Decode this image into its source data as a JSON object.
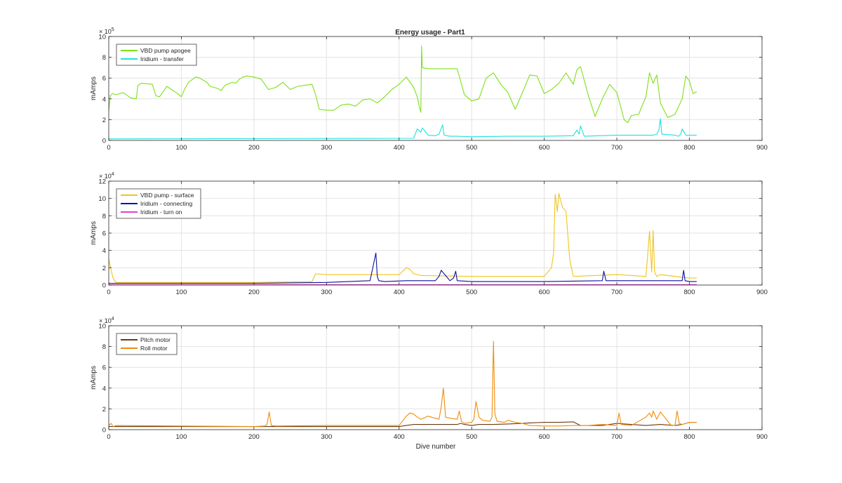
{
  "figure_title": "Energy usage - Part1",
  "x_axis_label": "Dive number",
  "colors": {
    "vbd_apogee": "#7FE01A",
    "iridium_transfer": "#1FE0E0",
    "vbd_surface": "#F2C51A",
    "iridium_connecting": "#0A14A0",
    "iridium_turn_on": "#E040D0",
    "pitch_motor": "#6B3A10",
    "roll_motor": "#F08C0C",
    "grid": "#E2E2E2",
    "axis": "#262626"
  },
  "chart_data": [
    {
      "type": "line",
      "title": "Energy usage - Part1",
      "xlabel": "",
      "ylabel": "mAmps",
      "exponent_label": "× 10^5",
      "xlim": [
        0,
        900
      ],
      "ylim": [
        0,
        10
      ],
      "xticks": [
        0,
        100,
        200,
        300,
        400,
        500,
        600,
        700,
        800,
        900
      ],
      "yticks": [
        0,
        2,
        4,
        6,
        8,
        10
      ],
      "grid": true,
      "legend_position": "top-left",
      "series": [
        {
          "name": "VBD pump apogee",
          "color_key": "vbd_apogee",
          "x": [
            0,
            2,
            5,
            10,
            20,
            30,
            38,
            40,
            45,
            60,
            65,
            70,
            80,
            95,
            100,
            105,
            110,
            120,
            125,
            135,
            140,
            150,
            155,
            160,
            170,
            175,
            180,
            185,
            190,
            200,
            210,
            220,
            230,
            240,
            250,
            260,
            270,
            280,
            285,
            290,
            300,
            310,
            320,
            330,
            340,
            350,
            360,
            370,
            380,
            390,
            400,
            410,
            420,
            425,
            428,
            430,
            431,
            432,
            440,
            460,
            480,
            490,
            500,
            510,
            520,
            530,
            540,
            550,
            560,
            570,
            580,
            590,
            600,
            610,
            620,
            630,
            640,
            645,
            650,
            660,
            670,
            680,
            690,
            700,
            710,
            715,
            720,
            730,
            740,
            745,
            750,
            755,
            760,
            770,
            780,
            790,
            795,
            800,
            805,
            810
          ],
          "values": [
            2.8,
            4.3,
            4.5,
            4.4,
            4.6,
            4.1,
            4.0,
            5.3,
            5.5,
            5.4,
            4.3,
            4.2,
            5.2,
            4.5,
            4.2,
            5.0,
            5.6,
            6.1,
            6.0,
            5.6,
            5.2,
            5.0,
            4.8,
            5.3,
            5.6,
            5.5,
            5.9,
            6.1,
            6.2,
            6.1,
            5.9,
            4.9,
            5.1,
            5.6,
            4.9,
            5.2,
            5.3,
            5.4,
            4.4,
            3.0,
            2.9,
            2.9,
            3.4,
            3.5,
            3.3,
            3.9,
            4.0,
            3.6,
            4.2,
            4.9,
            5.4,
            6.1,
            5.1,
            4.2,
            3.2,
            2.7,
            9.1,
            7.0,
            6.9,
            6.9,
            6.9,
            4.4,
            3.8,
            4.0,
            6.0,
            6.5,
            5.4,
            4.6,
            3.0,
            4.6,
            6.3,
            6.2,
            4.5,
            4.9,
            5.5,
            6.5,
            5.4,
            6.8,
            7.1,
            4.5,
            2.3,
            4.0,
            5.4,
            4.6,
            2.0,
            1.7,
            2.4,
            2.5,
            4.2,
            6.5,
            5.5,
            6.3,
            3.6,
            2.2,
            2.5,
            4.0,
            6.2,
            5.7,
            4.5,
            4.7
          ]
        },
        {
          "name": "Iridium - transfer",
          "color_key": "iridium_transfer",
          "x": [
            0,
            420,
            425,
            430,
            432,
            440,
            450,
            455,
            460,
            462,
            470,
            480,
            500,
            550,
            600,
            640,
            645,
            648,
            650,
            655,
            700,
            750,
            755,
            758,
            760,
            762,
            780,
            785,
            788,
            790,
            795,
            810
          ],
          "values": [
            0.15,
            0.2,
            1.1,
            0.8,
            1.2,
            0.5,
            0.45,
            0.6,
            1.5,
            0.5,
            0.4,
            0.4,
            0.35,
            0.4,
            0.4,
            0.45,
            1.0,
            0.6,
            1.4,
            0.4,
            0.5,
            0.5,
            0.6,
            1.0,
            2.1,
            0.6,
            0.5,
            0.4,
            0.6,
            1.1,
            0.5,
            0.5
          ]
        }
      ]
    },
    {
      "type": "line",
      "xlabel": "",
      "ylabel": "mAmps",
      "exponent_label": "× 10^4",
      "xlim": [
        0,
        900
      ],
      "ylim": [
        0,
        12
      ],
      "xticks": [
        0,
        100,
        200,
        300,
        400,
        500,
        600,
        700,
        800,
        900
      ],
      "yticks": [
        0,
        2,
        4,
        6,
        8,
        10,
        12
      ],
      "grid": true,
      "legend_position": "top-left",
      "series": [
        {
          "name": "VBD pump - surface",
          "color_key": "vbd_surface",
          "x": [
            0,
            3,
            6,
            10,
            100,
            200,
            280,
            285,
            300,
            400,
            410,
            415,
            420,
            430,
            500,
            600,
            610,
            613,
            615,
            618,
            620,
            625,
            630,
            635,
            640,
            700,
            740,
            742,
            745,
            748,
            750,
            752,
            755,
            760,
            800,
            810
          ],
          "values": [
            3.0,
            1.8,
            0.8,
            0.3,
            0.3,
            0.3,
            0.4,
            1.3,
            1.2,
            1.2,
            2.0,
            1.8,
            1.3,
            1.1,
            1.0,
            1.0,
            2.0,
            3.8,
            10.5,
            8.5,
            10.6,
            9.0,
            8.5,
            3.0,
            1.0,
            1.2,
            1.0,
            3.0,
            6.2,
            1.5,
            6.3,
            1.5,
            1.0,
            1.2,
            0.8,
            0.8
          ]
        },
        {
          "name": "Iridium - connecting",
          "color_key": "iridium_connecting",
          "x": [
            0,
            200,
            300,
            360,
            368,
            370,
            372,
            380,
            410,
            450,
            455,
            458,
            470,
            475,
            478,
            480,
            500,
            600,
            680,
            682,
            685,
            700,
            790,
            792,
            794,
            800,
            810
          ],
          "values": [
            0.2,
            0.2,
            0.3,
            0.5,
            3.7,
            1.0,
            0.5,
            0.4,
            0.5,
            0.5,
            1.0,
            1.7,
            0.5,
            0.8,
            1.6,
            0.5,
            0.4,
            0.4,
            0.5,
            1.6,
            0.5,
            0.5,
            0.5,
            1.7,
            0.5,
            0.4,
            0.4
          ]
        },
        {
          "name": "Iridium - turn on",
          "color_key": "iridium_turn_on",
          "x": [
            0,
            810
          ],
          "values": [
            0.05,
            0.05
          ]
        }
      ]
    },
    {
      "type": "line",
      "xlabel": "Dive number",
      "ylabel": "mAmps",
      "exponent_label": "× 10^4",
      "xlim": [
        0,
        900
      ],
      "ylim": [
        0,
        10
      ],
      "xticks": [
        0,
        100,
        200,
        300,
        400,
        500,
        600,
        700,
        800,
        900
      ],
      "yticks": [
        0,
        2,
        4,
        6,
        8,
        10
      ],
      "grid": true,
      "legend_position": "top-left",
      "series": [
        {
          "name": "Pitch motor",
          "color_key": "pitch_motor",
          "x": [
            0,
            100,
            200,
            300,
            400,
            410,
            420,
            450,
            480,
            485,
            490,
            500,
            510,
            530,
            550,
            570,
            580,
            600,
            620,
            640,
            650,
            680,
            690,
            700,
            720,
            740,
            760,
            780,
            790,
            800,
            810
          ],
          "values": [
            0.3,
            0.3,
            0.3,
            0.3,
            0.3,
            0.4,
            0.5,
            0.5,
            0.5,
            0.6,
            0.5,
            0.4,
            0.5,
            0.5,
            0.55,
            0.6,
            0.65,
            0.7,
            0.7,
            0.75,
            0.4,
            0.4,
            0.5,
            0.6,
            0.5,
            0.4,
            0.5,
            0.4,
            0.5,
            0.7,
            0.7
          ]
        },
        {
          "name": "Roll motor",
          "color_key": "roll_motor",
          "x": [
            0,
            3,
            6,
            10,
            100,
            200,
            215,
            218,
            221,
            224,
            230,
            300,
            400,
            410,
            415,
            420,
            425,
            430,
            440,
            455,
            458,
            461,
            464,
            470,
            480,
            483,
            486,
            490,
            500,
            503,
            506,
            510,
            515,
            525,
            528,
            530,
            532,
            535,
            545,
            550,
            560,
            570,
            580,
            600,
            620,
            640,
            660,
            680,
            700,
            703,
            706,
            720,
            740,
            745,
            748,
            750,
            755,
            760,
            775,
            780,
            783,
            786,
            790,
            800,
            810
          ],
          "values": [
            0.4,
            0.6,
            0.3,
            0.4,
            0.35,
            0.3,
            0.35,
            0.5,
            1.7,
            0.4,
            0.35,
            0.4,
            0.4,
            1.3,
            1.6,
            1.5,
            1.2,
            1.0,
            1.3,
            1.0,
            2.2,
            4.0,
            1.2,
            1.1,
            1.0,
            1.8,
            0.8,
            0.6,
            0.7,
            1.0,
            2.7,
            1.2,
            0.9,
            0.8,
            1.2,
            8.5,
            1.5,
            0.8,
            0.7,
            0.9,
            0.7,
            0.6,
            0.4,
            0.35,
            0.35,
            0.4,
            0.4,
            0.5,
            0.4,
            1.6,
            0.5,
            0.4,
            1.2,
            1.6,
            1.2,
            1.8,
            1.0,
            1.7,
            0.4,
            0.4,
            1.8,
            0.6,
            0.5,
            0.7,
            0.7
          ]
        }
      ]
    }
  ]
}
